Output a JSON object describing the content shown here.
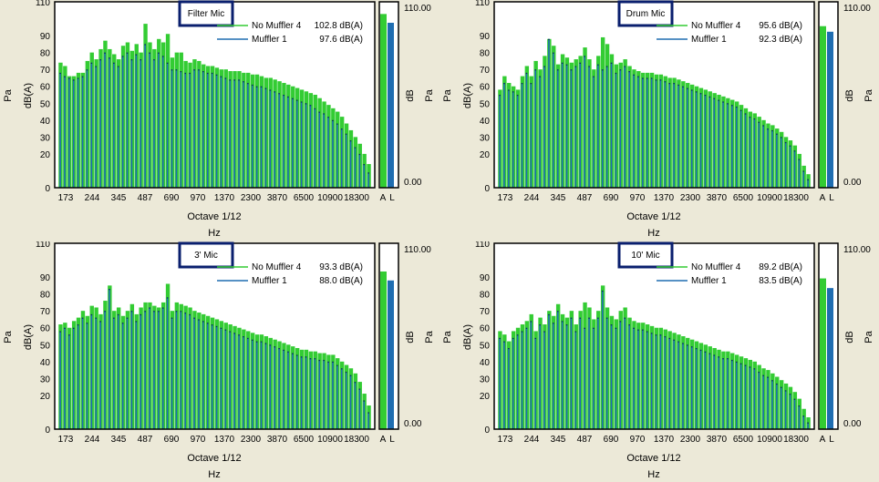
{
  "labels": {
    "yleft_pa": "Pa",
    "yleft_dba": "dB(A)",
    "xlabel": "Octave 1/12",
    "xunit": "Hz",
    "meter_db": "dB",
    "meter_pa": "Pa",
    "meter_top": "110.00",
    "meter_bottom": "0.00",
    "meter_ticks": [
      "A",
      "L"
    ]
  },
  "colors": {
    "green": "#33cc33",
    "blue": "#1f6db1",
    "plot_bg": "#ffffff",
    "frame": "#000000",
    "title_border": "#0a1f6e"
  },
  "chart_data": [
    {
      "type": "bar",
      "title": "Filter Mic",
      "xlabel": "Octave 1/12",
      "ylabel": "dB(A)",
      "ylim": [
        0,
        110
      ],
      "y_ticks": [
        0,
        20,
        30,
        40,
        50,
        60,
        70,
        80,
        90,
        110
      ],
      "x_tick_labels": [
        "173",
        "244",
        "345",
        "487",
        "690",
        "970",
        "1370",
        "2300",
        "3870",
        "6500",
        "10900",
        "18300"
      ],
      "x_range_hz": [
        173,
        23000
      ],
      "series": [
        {
          "name": "No Muffler 4",
          "value_text": "102.8 dB(A)",
          "overall_db": 102.8,
          "values": [
            74,
            72,
            66,
            66,
            68,
            68,
            75,
            80,
            76,
            82,
            87,
            82,
            79,
            76,
            84,
            86,
            81,
            85,
            80,
            97,
            86,
            82,
            88,
            86,
            91,
            77,
            80,
            80,
            75,
            74,
            76,
            75,
            73,
            72,
            72,
            71,
            70,
            70,
            69,
            69,
            69,
            68,
            68,
            67,
            67,
            66,
            65,
            65,
            64,
            63,
            62,
            61,
            60,
            59,
            58,
            57,
            56,
            55,
            53,
            51,
            49,
            47,
            45,
            42,
            38,
            34,
            30,
            26,
            20,
            14
          ]
        },
        {
          "name": "Muffler 1",
          "value_text": "97.6 dB(A)",
          "overall_db": 97.6,
          "values": [
            68,
            66,
            65,
            64,
            65,
            66,
            70,
            74,
            72,
            76,
            80,
            77,
            74,
            72,
            78,
            80,
            76,
            79,
            76,
            85,
            80,
            76,
            80,
            78,
            74,
            70,
            70,
            69,
            68,
            68,
            70,
            70,
            69,
            68,
            68,
            67,
            66,
            65,
            64,
            64,
            64,
            63,
            62,
            61,
            60,
            60,
            59,
            58,
            57,
            56,
            55,
            54,
            53,
            52,
            51,
            50,
            49,
            47,
            45,
            44,
            42,
            40,
            38,
            35,
            32,
            28,
            24,
            20,
            14,
            9
          ]
        }
      ]
    },
    {
      "type": "bar",
      "title": "Drum Mic",
      "xlabel": "Octave 1/12",
      "ylabel": "dB(A)",
      "ylim": [
        0,
        110
      ],
      "y_ticks": [
        0,
        20,
        30,
        40,
        50,
        60,
        70,
        80,
        90,
        110
      ],
      "x_tick_labels": [
        "173",
        "244",
        "345",
        "487",
        "690",
        "970",
        "1370",
        "2300",
        "3870",
        "6500",
        "10900",
        "18300"
      ],
      "x_range_hz": [
        173,
        23000
      ],
      "series": [
        {
          "name": "No Muffler 4",
          "value_text": "95.6 dB(A)",
          "overall_db": 95.6,
          "values": [
            58,
            66,
            62,
            60,
            58,
            66,
            72,
            66,
            75,
            70,
            78,
            88,
            84,
            73,
            79,
            77,
            74,
            76,
            78,
            83,
            76,
            70,
            78,
            89,
            85,
            79,
            73,
            74,
            76,
            72,
            70,
            69,
            68,
            68,
            68,
            67,
            67,
            66,
            65,
            65,
            64,
            63,
            62,
            61,
            60,
            59,
            58,
            57,
            56,
            55,
            54,
            53,
            52,
            51,
            49,
            47,
            45,
            44,
            42,
            40,
            38,
            37,
            35,
            33,
            30,
            28,
            25,
            20,
            13,
            8
          ]
        },
        {
          "name": "Muffler 1",
          "value_text": "92.3 dB(A)",
          "overall_db": 92.3,
          "values": [
            55,
            62,
            58,
            57,
            55,
            62,
            68,
            62,
            70,
            66,
            72,
            88,
            80,
            70,
            74,
            73,
            70,
            72,
            74,
            78,
            72,
            66,
            73,
            70,
            72,
            74,
            68,
            70,
            72,
            69,
            67,
            66,
            65,
            65,
            65,
            64,
            64,
            63,
            62,
            62,
            61,
            60,
            59,
            58,
            57,
            56,
            55,
            54,
            53,
            52,
            51,
            50,
            49,
            48,
            46,
            44,
            42,
            41,
            39,
            37,
            35,
            34,
            32,
            30,
            27,
            25,
            22,
            17,
            10,
            5
          ]
        }
      ]
    },
    {
      "type": "bar",
      "title": "3' Mic",
      "xlabel": "Octave 1/12",
      "ylabel": "dB(A)",
      "ylim": [
        0,
        110
      ],
      "y_ticks": [
        0,
        20,
        30,
        40,
        50,
        60,
        70,
        80,
        90,
        110
      ],
      "x_tick_labels": [
        "173",
        "244",
        "345",
        "487",
        "690",
        "970",
        "1370",
        "2300",
        "3870",
        "6500",
        "10900",
        "18300"
      ],
      "x_range_hz": [
        173,
        23000
      ],
      "series": [
        {
          "name": "No Muffler 4",
          "value_text": "93.3 dB(A)",
          "overall_db": 93.3,
          "values": [
            62,
            63,
            60,
            64,
            66,
            70,
            67,
            73,
            72,
            68,
            76,
            85,
            70,
            72,
            67,
            70,
            74,
            68,
            72,
            75,
            75,
            73,
            72,
            75,
            86,
            70,
            75,
            74,
            73,
            72,
            70,
            69,
            68,
            67,
            66,
            65,
            64,
            63,
            62,
            61,
            60,
            59,
            58,
            57,
            56,
            56,
            55,
            54,
            53,
            52,
            51,
            50,
            49,
            48,
            47,
            47,
            46,
            46,
            45,
            45,
            44,
            44,
            42,
            40,
            38,
            36,
            33,
            28,
            21,
            14
          ]
        },
        {
          "name": "Muffler 1",
          "value_text": "88.0 dB(A)",
          "overall_db": 88.0,
          "values": [
            58,
            60,
            56,
            60,
            62,
            66,
            63,
            68,
            66,
            64,
            70,
            83,
            66,
            68,
            63,
            66,
            70,
            64,
            68,
            70,
            72,
            70,
            70,
            72,
            78,
            66,
            70,
            70,
            69,
            68,
            66,
            65,
            64,
            63,
            62,
            61,
            60,
            59,
            58,
            57,
            56,
            55,
            54,
            53,
            52,
            52,
            51,
            50,
            49,
            48,
            47,
            46,
            45,
            44,
            43,
            43,
            42,
            42,
            41,
            41,
            40,
            40,
            38,
            36,
            34,
            32,
            28,
            24,
            17,
            10
          ]
        }
      ]
    },
    {
      "type": "bar",
      "title": "10' Mic",
      "xlabel": "Octave 1/12",
      "ylabel": "dB(A)",
      "ylim": [
        0,
        110
      ],
      "y_ticks": [
        0,
        20,
        30,
        40,
        50,
        60,
        70,
        80,
        90,
        110
      ],
      "x_tick_labels": [
        "173",
        "244",
        "345",
        "487",
        "690",
        "970",
        "1370",
        "2300",
        "3870",
        "6500",
        "10900",
        "18300"
      ],
      "x_range_hz": [
        173,
        23000
      ],
      "series": [
        {
          "name": "No Muffler 4",
          "value_text": "89.2 dB(A)",
          "overall_db": 89.2,
          "values": [
            58,
            56,
            52,
            58,
            60,
            62,
            64,
            68,
            58,
            66,
            62,
            70,
            67,
            74,
            68,
            66,
            70,
            62,
            70,
            75,
            72,
            65,
            70,
            85,
            72,
            67,
            65,
            70,
            72,
            66,
            64,
            63,
            63,
            62,
            61,
            60,
            60,
            59,
            58,
            57,
            56,
            55,
            54,
            53,
            52,
            51,
            50,
            49,
            48,
            47,
            46,
            46,
            45,
            44,
            43,
            42,
            41,
            40,
            38,
            36,
            35,
            33,
            31,
            29,
            27,
            25,
            22,
            18,
            12,
            7
          ]
        },
        {
          "name": "Muffler 1",
          "value_text": "83.5 dB(A)",
          "overall_db": 83.5,
          "values": [
            54,
            52,
            48,
            54,
            56,
            58,
            60,
            64,
            54,
            62,
            58,
            68,
            63,
            70,
            64,
            62,
            66,
            58,
            66,
            60,
            66,
            60,
            66,
            82,
            66,
            62,
            60,
            64,
            66,
            62,
            60,
            59,
            59,
            58,
            57,
            56,
            56,
            55,
            54,
            53,
            52,
            51,
            50,
            49,
            48,
            47,
            46,
            45,
            44,
            43,
            42,
            42,
            41,
            40,
            39,
            38,
            37,
            36,
            34,
            32,
            31,
            29,
            27,
            25,
            23,
            21,
            18,
            14,
            8,
            4
          ]
        }
      ]
    }
  ]
}
